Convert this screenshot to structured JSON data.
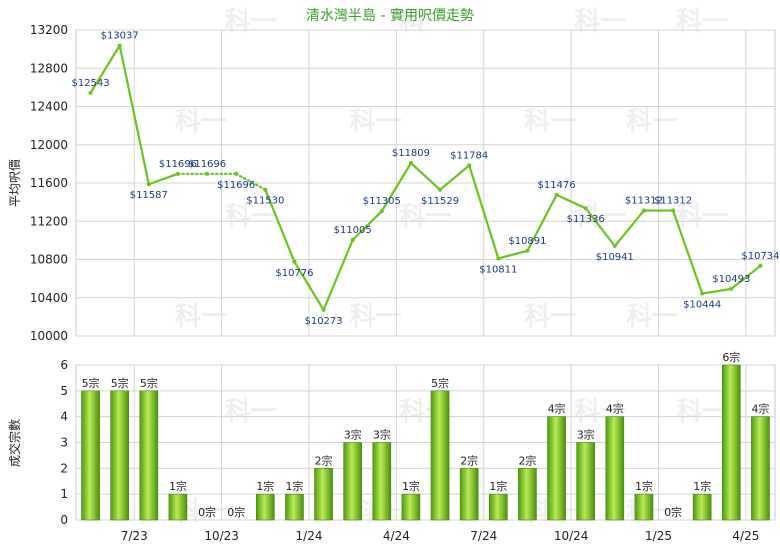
{
  "chart_data": [
    {
      "type": "line",
      "title": "清水灣半島 - 實用呎價走勢",
      "ylabel": "平均呎價",
      "ylim": [
        10000,
        13200
      ],
      "yticks": [
        10000,
        10400,
        10800,
        11200,
        11600,
        12000,
        12400,
        12800,
        13200
      ],
      "grid": true,
      "series": [
        {
          "values": [
            12543,
            13037,
            11587,
            11696,
            11696,
            11696,
            11530,
            10776,
            10273,
            11005,
            11305,
            11809,
            11529,
            11784,
            10811,
            10891,
            11476,
            11336,
            10941,
            11312,
            11312,
            10444,
            10493,
            10734
          ],
          "labels": [
            "$12543",
            "$13037",
            "$11587",
            "$11696",
            "$11696",
            "$11696",
            "$11530",
            "$10776",
            "$10273",
            "$11005",
            "$11305",
            "$11809",
            "$11529",
            "$11784",
            "$10811",
            "$10891",
            "$11476",
            "$11336",
            "$10941",
            "$11312",
            "$11312",
            "$10444",
            "$10493",
            "$10734"
          ],
          "dotted_segments": [
            [
              3,
              6
            ]
          ],
          "color": "#6cc21e"
        }
      ]
    },
    {
      "type": "bar",
      "ylabel": "成交宗數",
      "ylim": [
        0,
        6
      ],
      "yticks": [
        0,
        1,
        2,
        3,
        4,
        5,
        6
      ],
      "grid": true,
      "x_tick_labels": [
        "7/23",
        "10/23",
        "1/24",
        "4/24",
        "7/24",
        "10/24",
        "1/25",
        "4/25"
      ],
      "series": [
        {
          "values": [
            5,
            5,
            5,
            1,
            0,
            0,
            1,
            1,
            2,
            3,
            3,
            1,
            5,
            2,
            1,
            2,
            4,
            3,
            4,
            1,
            0,
            1,
            6,
            4
          ],
          "labels": [
            "5宗",
            "5宗",
            "5宗",
            "1宗",
            "0宗",
            "0宗",
            "1宗",
            "1宗",
            "2宗",
            "3宗",
            "3宗",
            "1宗",
            "5宗",
            "2宗",
            "1宗",
            "2宗",
            "4宗",
            "3宗",
            "4宗",
            "1宗",
            "0宗",
            "1宗",
            "6宗",
            "4宗"
          ],
          "color": "#6cc21e"
        }
      ]
    }
  ],
  "watermark": "科一"
}
